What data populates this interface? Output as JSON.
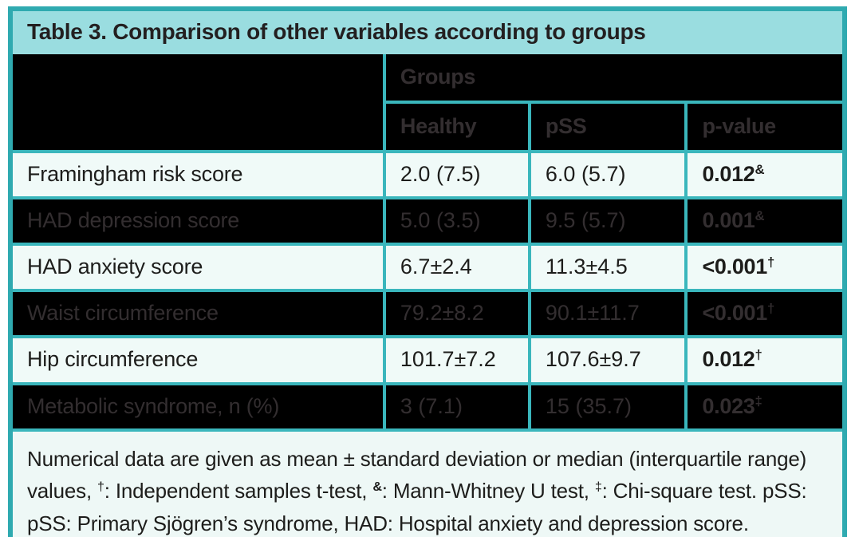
{
  "title": "Table 3. Comparison of other variables according to groups",
  "colors": {
    "teal_border": "#2faab0",
    "grid_teal": "#3ab6bc",
    "title_bg": "#9adde0",
    "header_bg": "#000000",
    "header_text": "#332e30",
    "light_row_bg": "#f0faf8",
    "dark_row_bg": "#000000",
    "dark_row_text": "#332e30",
    "footer_bg": "#eef8f6"
  },
  "header": {
    "group_label": "Groups",
    "columns": [
      "Healthy",
      "pSS",
      "p-value"
    ]
  },
  "rows": [
    {
      "label": "Framingham risk score",
      "healthy": "2.0 (7.5)",
      "pss": "6.0 (5.7)",
      "p": "0.012",
      "p_sup": "&"
    },
    {
      "label": "HAD depression score",
      "healthy": "5.0 (3.5)",
      "pss": "9.5 (5.7)",
      "p": "0.001",
      "p_sup": "&"
    },
    {
      "label": "HAD anxiety score",
      "healthy": "6.7±2.4",
      "pss": "11.3±4.5",
      "p": "<0.001",
      "p_sup": "†"
    },
    {
      "label": "Waist circumference",
      "healthy": "79.2±8.2",
      "pss": "90.1±11.7",
      "p": "<0.001",
      "p_sup": "†"
    },
    {
      "label": "Hip circumference",
      "healthy": "101.7±7.2",
      "pss": "107.6±9.7",
      "p": "0.012",
      "p_sup": "†"
    },
    {
      "label": "Metabolic syndrome, n (%)",
      "healthy": "3 (7.1)",
      "pss": "15 (35.7)",
      "p": "0.023",
      "p_sup": "‡"
    }
  ],
  "footnote": {
    "segments": [
      {
        "text": "Numerical data are given as mean ± standard deviation or median (interquartile range) values, "
      },
      {
        "sup": "†"
      },
      {
        "text": ": Independent samples t-test, "
      },
      {
        "sup": "&",
        "bold": true
      },
      {
        "text": ": Mann-Whitney U test, "
      },
      {
        "sup": "‡"
      },
      {
        "text": ": Chi-square test. pSS: pSS: Primary Sjögren’s syndrome, HAD: Hospital anxiety and depression score."
      }
    ]
  }
}
